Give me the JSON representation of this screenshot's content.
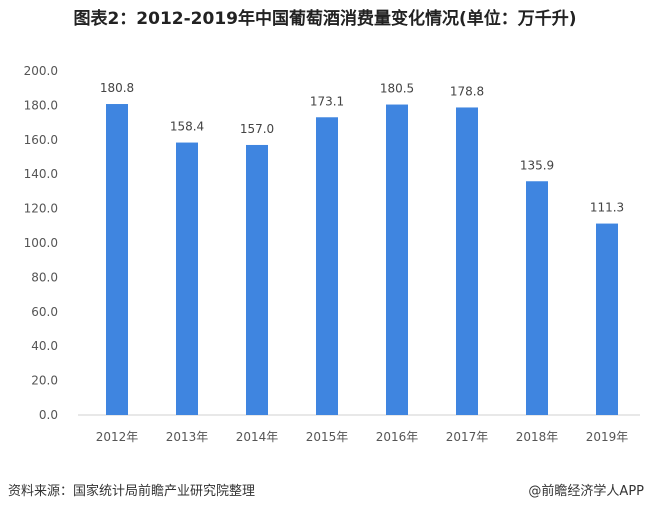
{
  "chart_data": {
    "type": "bar",
    "title": "图表2：2012-2019年中国葡萄酒消费量变化情况(单位：万千升)",
    "categories": [
      "2012年",
      "2013年",
      "2014年",
      "2015年",
      "2016年",
      "2017年",
      "2018年",
      "2019年"
    ],
    "values": [
      180.8,
      158.4,
      157.0,
      173.1,
      180.5,
      178.8,
      135.9,
      111.3
    ],
    "value_labels": [
      "180.8",
      "158.4",
      "157.0",
      "173.1",
      "180.5",
      "178.8",
      "135.9",
      "111.3"
    ],
    "xlabel": "",
    "ylabel": "",
    "ylim": [
      0,
      200
    ],
    "yticks": [
      "0.0",
      "20.0",
      "40.0",
      "60.0",
      "80.0",
      "100.0",
      "120.0",
      "140.0",
      "160.0",
      "180.0",
      "200.0"
    ],
    "grid": false,
    "bar_color": "#3f85e0"
  },
  "footer": {
    "source": "资料来源：国家统计局前瞻产业研究院整理",
    "credit": "@前瞻经济学人APP"
  }
}
